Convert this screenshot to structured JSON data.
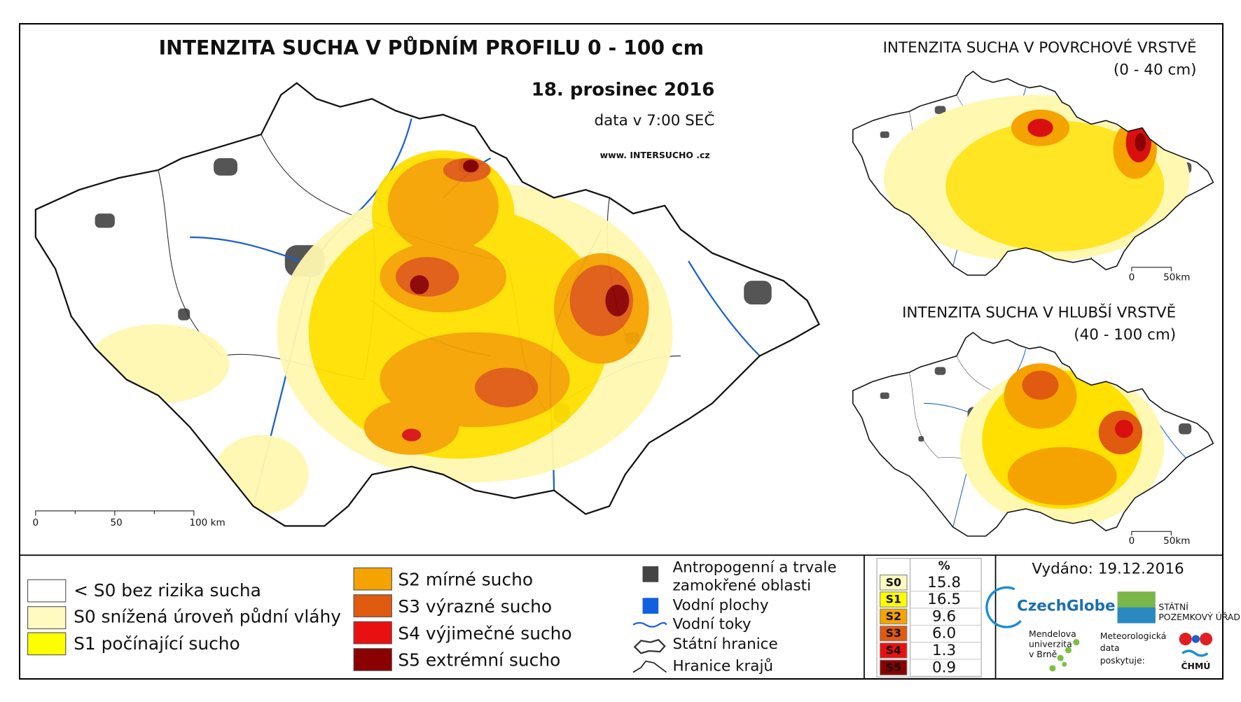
{
  "header": {
    "title": "INTENZITA SUCHA V PŮDNÍM PROFILU 0 - 100 cm",
    "date": "18. prosinec 2016",
    "time_note": "data v 7:00 SEČ",
    "website": "www. INTERSUCHO .cz"
  },
  "insets": [
    {
      "title": "INTENZITA SUCHA V POVRCHOVÉ VRSTVĚ",
      "subtitle": "(0 - 40 cm)"
    },
    {
      "title": "INTENZITA SUCHA V HLUBŠÍ VRSTVĚ",
      "subtitle": "(40 - 100 cm)"
    }
  ],
  "scale_bars": {
    "main": [
      "0",
      "50",
      "100 km"
    ],
    "inset": [
      "0",
      "50km"
    ]
  },
  "legend": {
    "classes": [
      "< S0 bez rizika sucha",
      "S0 snížená úroveň půdní vláhy",
      "S1 počínající sucho",
      "S2 mírné sucho",
      "S3 výrazné sucho",
      "S4 výjimečné sucho",
      "S5 extrémní sucho"
    ],
    "symbols": [
      "Antropogenní a trvale",
      "zamokřené oblasti",
      "Vodní plochy",
      "Vodní toky",
      "Státní hranice",
      "Hranice krajů"
    ]
  },
  "table": {
    "header": "%",
    "rows": [
      [
        "S0",
        "15.8"
      ],
      [
        "S1",
        "16.5"
      ],
      [
        "S2",
        "9.6"
      ],
      [
        "S3",
        "6.0"
      ],
      [
        "S4",
        "1.3"
      ],
      [
        "S5",
        "0.9"
      ]
    ]
  },
  "footer": {
    "issued": "Vydáno: 19.12.2016",
    "logos": [
      "CzechGlobe",
      "STÁTNÍ",
      "POZEMKOVÝ ÚŘAD",
      "Mendelova",
      "univerzita",
      "v Brně",
      "Meteorologická",
      "data",
      "poskytuje:",
      "ČHMÚ"
    ]
  }
}
